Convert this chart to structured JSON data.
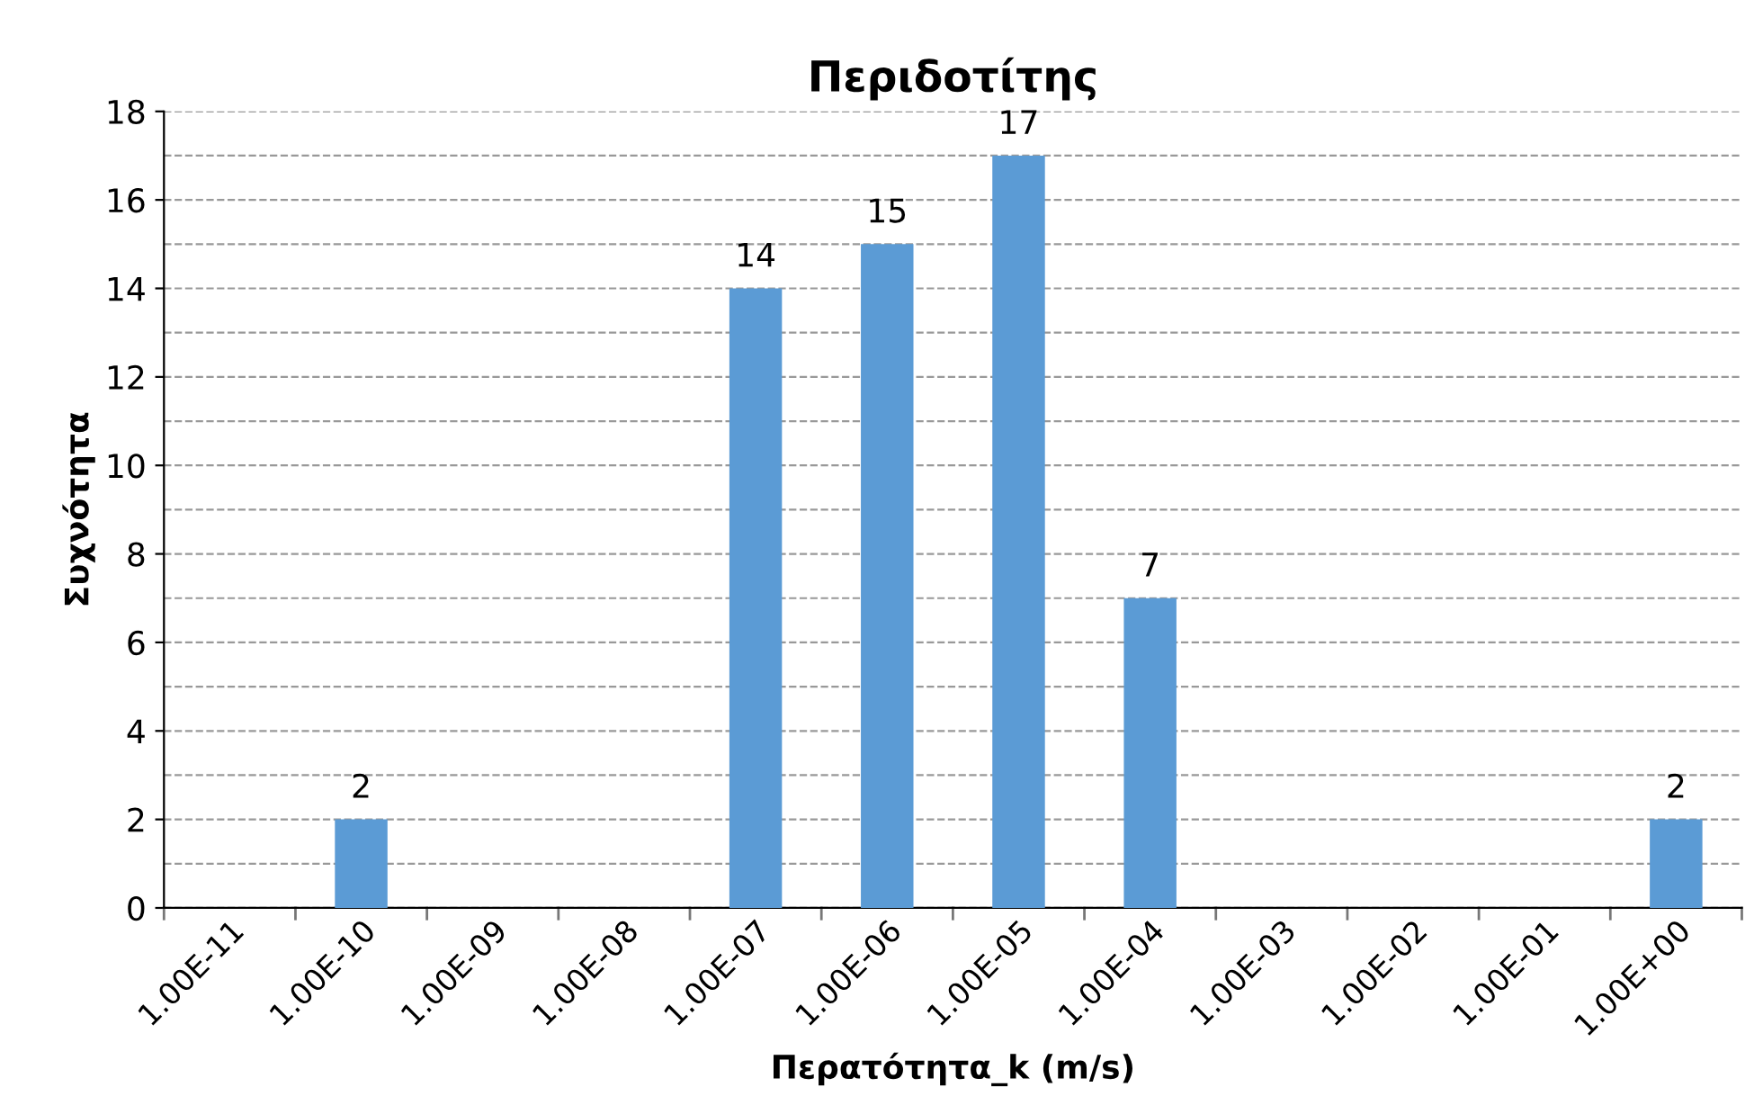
{
  "chart_data": {
    "type": "bar",
    "title": "Περιδοτίτης",
    "xlabel": "Περατότητα_k (m/s)",
    "ylabel": "Συχνότητα",
    "categories": [
      "1.00E-11",
      "1.00E-10",
      "1.00E-09",
      "1.00E-08",
      "1.00E-07",
      "1.00E-06",
      "1.00E-05",
      "1.00E-04",
      "1.00E-03",
      "1.00E-02",
      "1.00E-01",
      "1.00E+00"
    ],
    "values": [
      0,
      2,
      0,
      0,
      14,
      15,
      17,
      7,
      0,
      0,
      0,
      2
    ],
    "value_labels": [
      null,
      "2",
      null,
      null,
      "14",
      "15",
      "17",
      "7",
      null,
      null,
      null,
      "2"
    ],
    "color": "#5b9bd5",
    "ylim": [
      0,
      18
    ],
    "yticks": [
      0,
      2,
      4,
      6,
      8,
      10,
      12,
      14,
      16,
      18
    ],
    "grid": "y",
    "legend": false
  }
}
